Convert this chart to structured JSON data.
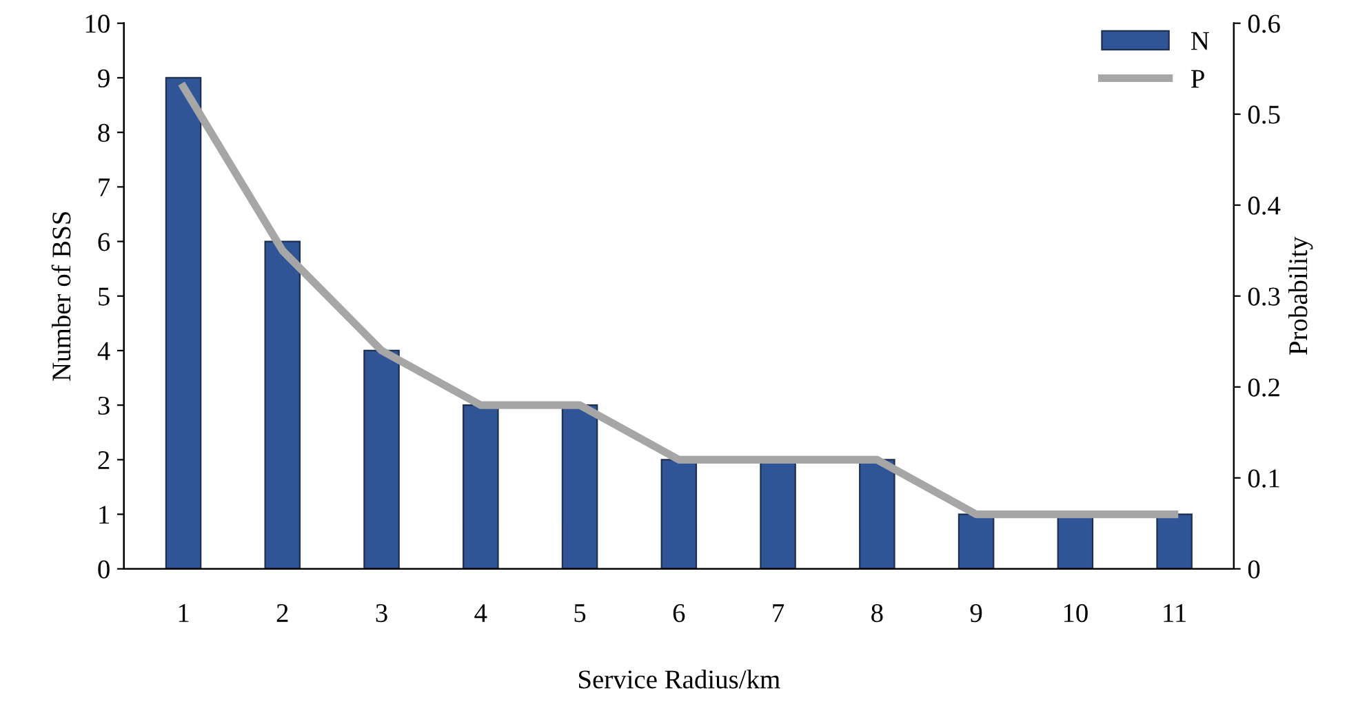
{
  "chart_data": {
    "type": "bar",
    "xlabel": "Service Radius/km",
    "ylabel": "Number of BSS",
    "y2label": "Probability",
    "categories": [
      "1",
      "2",
      "3",
      "4",
      "5",
      "6",
      "7",
      "8",
      "9",
      "10",
      "11"
    ],
    "series": [
      {
        "name": "N",
        "color": "#2f5597",
        "values": [
          9,
          6,
          4,
          3,
          3,
          2,
          2,
          2,
          1,
          1,
          1
        ]
      },
      {
        "name": "P",
        "type": "line",
        "axis": "y2",
        "color": "#a6a6a6",
        "line_style": "solid",
        "marker": "none",
        "values": [
          0.53,
          0.35,
          0.24,
          0.18,
          0.18,
          0.12,
          0.12,
          0.12,
          0.06,
          0.06,
          0.06
        ]
      }
    ],
    "ylim": [
      0,
      10
    ],
    "yticks": [
      0,
      1,
      2,
      3,
      4,
      5,
      6,
      7,
      8,
      9,
      10
    ],
    "y2lim": [
      0,
      0.6
    ],
    "y2ticks": [
      0,
      0.1,
      0.2,
      0.3,
      0.4,
      0.5,
      0.6
    ],
    "grid": false,
    "legend": "top right"
  }
}
